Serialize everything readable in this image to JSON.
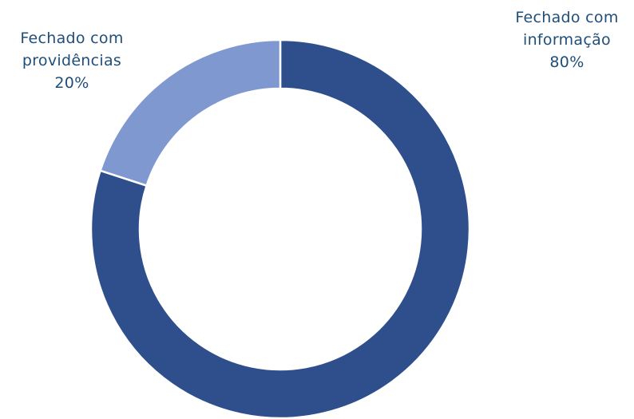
{
  "chart_data": {
    "type": "pie",
    "donut": true,
    "slices": [
      {
        "label_lines": [
          "Fechado com",
          "informação"
        ],
        "value_label": "80%",
        "value": 80,
        "color": "#2e4f8c"
      },
      {
        "label_lines": [
          "Fechado com",
          "providências"
        ],
        "value_label": "20%",
        "value": 20,
        "color": "#7f98d0"
      }
    ],
    "legend": "none"
  }
}
